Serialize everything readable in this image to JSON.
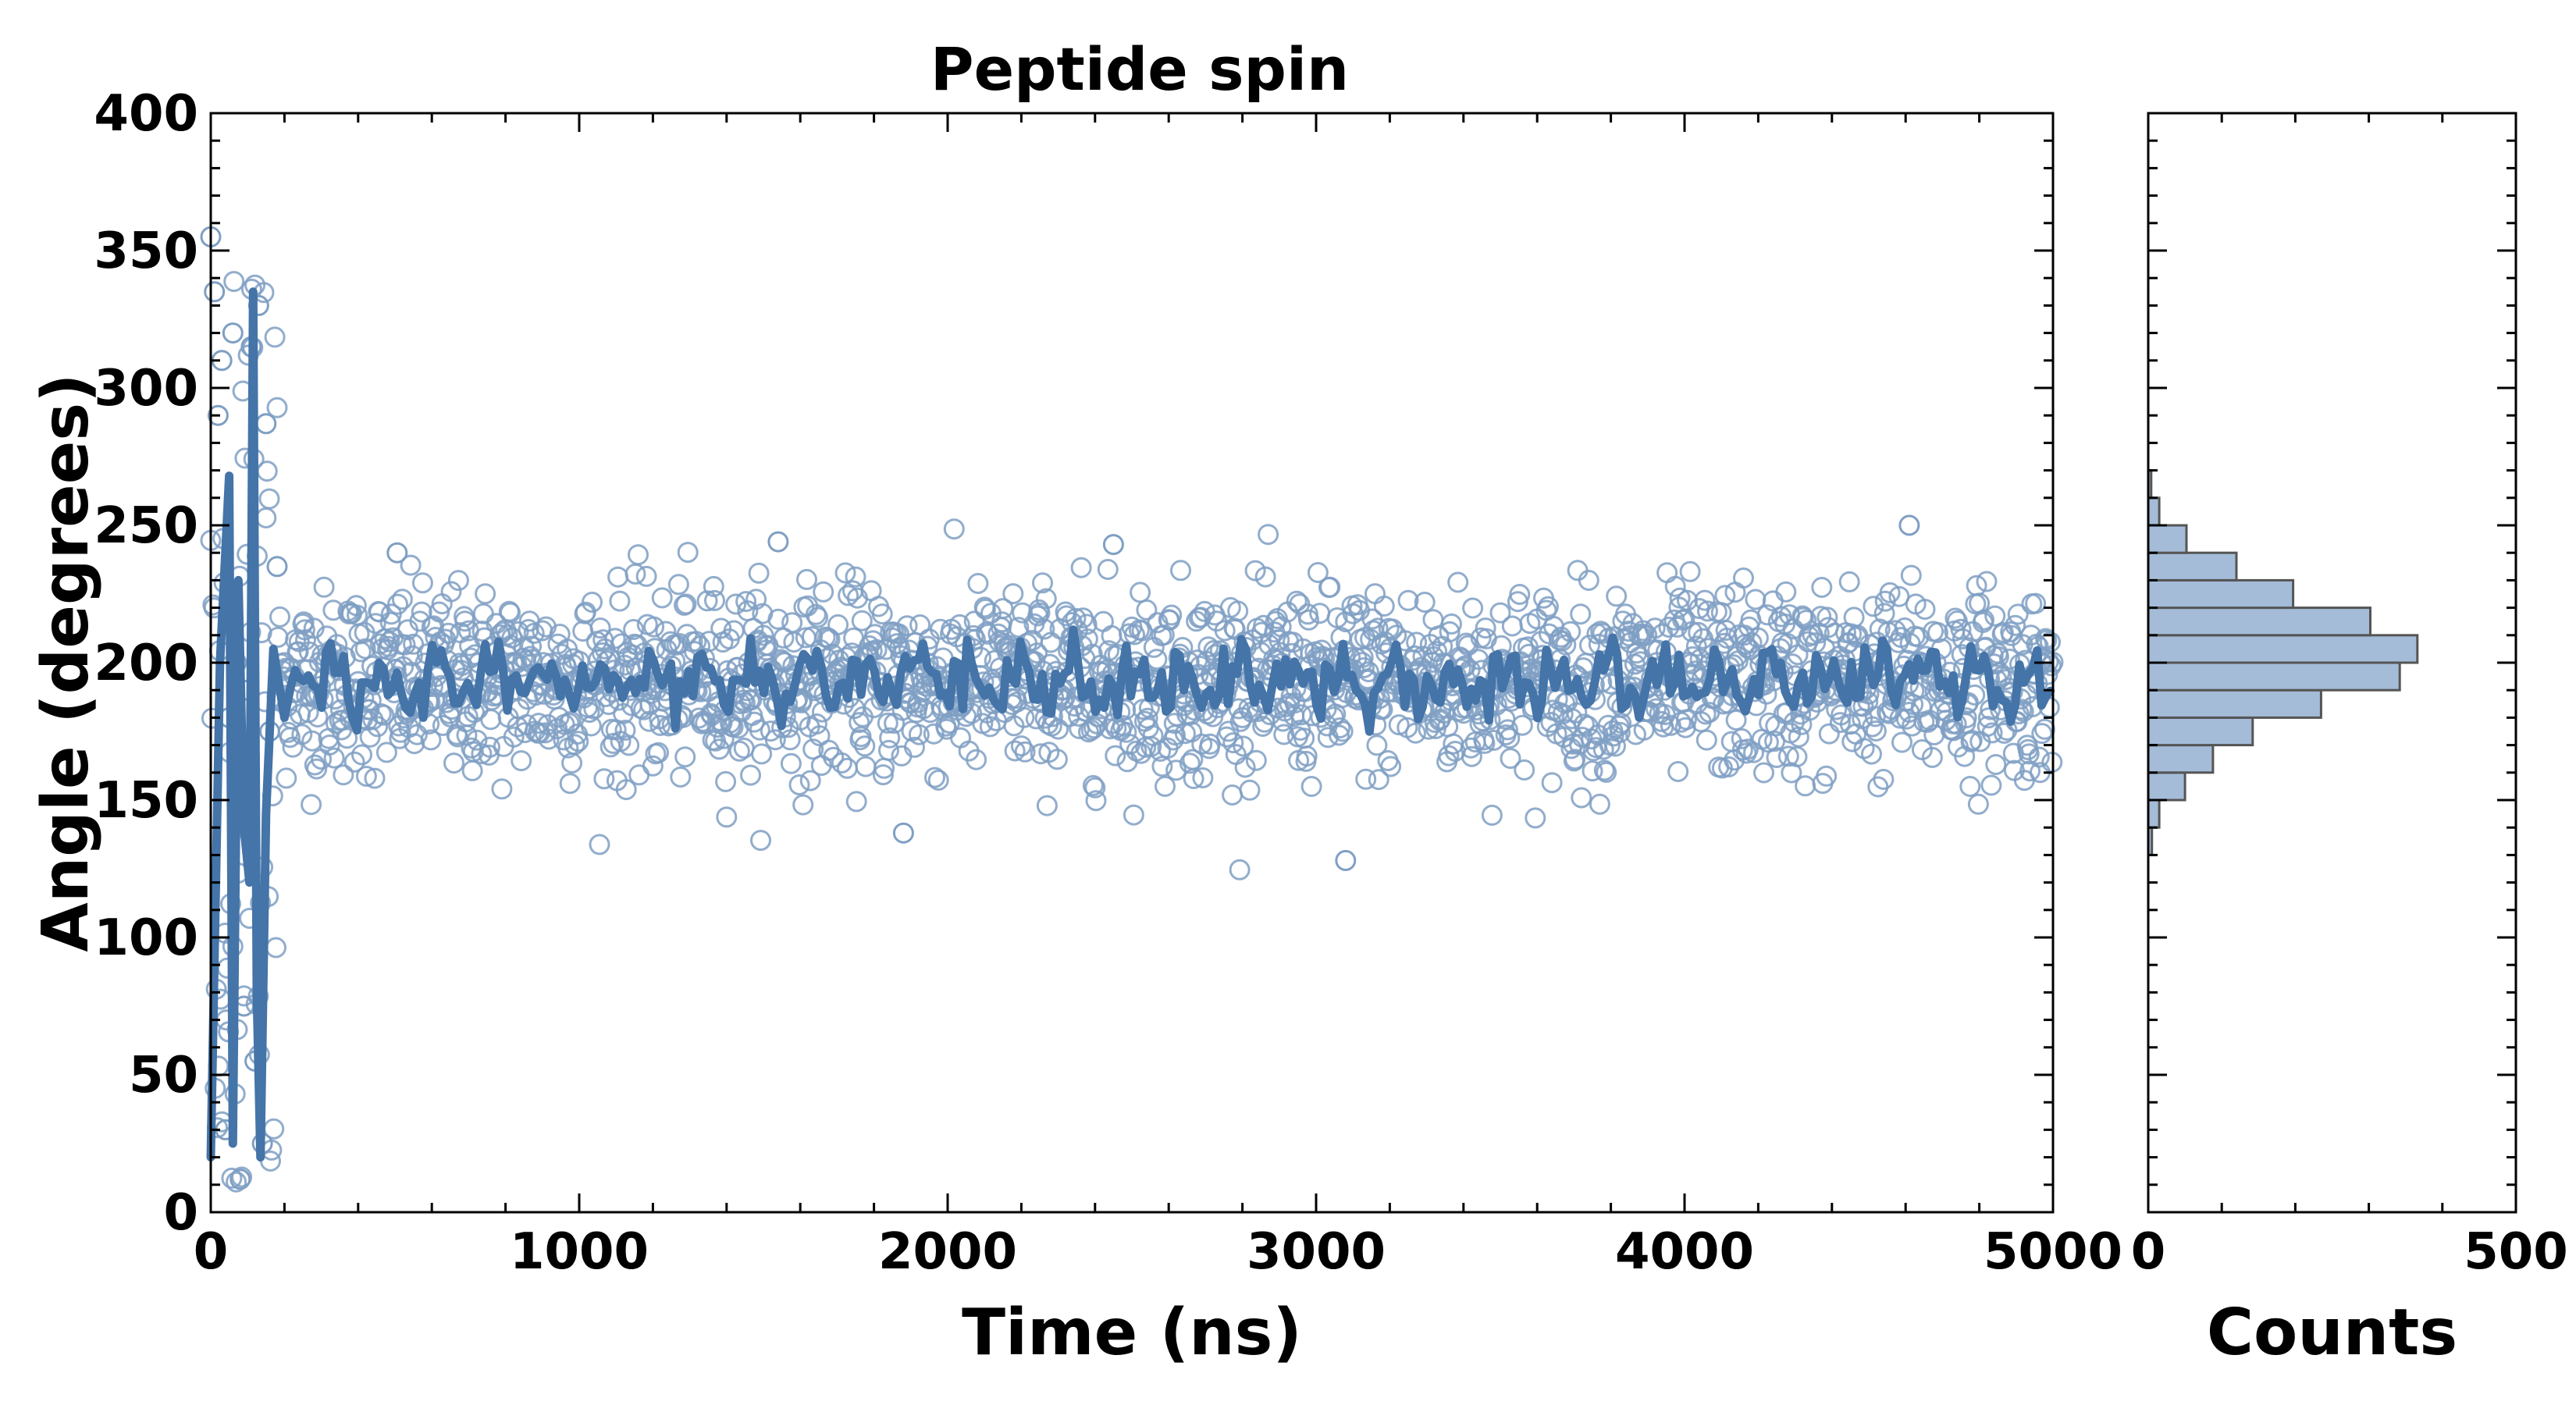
{
  "chart_data": [
    {
      "type": "scatter",
      "title": "Peptide spin",
      "xlabel": "Time (ns)",
      "ylabel": "Angle (degrees)",
      "xlim": [
        0,
        5000
      ],
      "ylim": [
        0,
        400
      ],
      "x_ticks": [
        "0",
        "1000",
        "2000",
        "3000",
        "4000",
        "5000"
      ],
      "y_ticks": [
        "0",
        "50",
        "100",
        "150",
        "200",
        "250",
        "300",
        "350",
        "400"
      ],
      "grid": false,
      "legend": "none",
      "colors": {
        "marker": "#7f9fc3",
        "line": "#4474a8"
      },
      "series": [
        {
          "kind": "scatter-open-circles",
          "description_points": [
            {
              "x": 0,
              "y": 355
            },
            {
              "x": 10,
              "y": 335
            },
            {
              "x": 20,
              "y": 290
            },
            {
              "x": 30,
              "y": 310
            },
            {
              "x": 40,
              "y": 30
            },
            {
              "x": 50,
              "y": 180
            },
            {
              "x": 60,
              "y": 320
            },
            {
              "x": 70,
              "y": 200
            },
            {
              "x": 80,
              "y": 12
            },
            {
              "x": 90,
              "y": 75
            },
            {
              "x": 100,
              "y": 190
            },
            {
              "x": 110,
              "y": 315
            },
            {
              "x": 120,
              "y": 55
            },
            {
              "x": 130,
              "y": 330
            },
            {
              "x": 140,
              "y": 25
            },
            {
              "x": 150,
              "y": 287
            },
            {
              "x": 160,
              "y": 175
            },
            {
              "x": 180,
              "y": 235
            },
            {
              "x": 506,
              "y": 240
            },
            {
              "x": 1540,
              "y": 244
            },
            {
              "x": 1880,
              "y": 138
            },
            {
              "x": 2450,
              "y": 243
            },
            {
              "x": 3080,
              "y": 128
            },
            {
              "x": 4610,
              "y": 250
            }
          ]
        },
        {
          "kind": "line",
          "key_points": [
            {
              "x": 0,
              "y": 20
            },
            {
              "x": 25,
              "y": 200
            },
            {
              "x": 50,
              "y": 268
            },
            {
              "x": 60,
              "y": 25
            },
            {
              "x": 75,
              "y": 230
            },
            {
              "x": 90,
              "y": 140
            },
            {
              "x": 105,
              "y": 120
            },
            {
              "x": 115,
              "y": 335
            },
            {
              "x": 125,
              "y": 80
            },
            {
              "x": 135,
              "y": 20
            },
            {
              "x": 150,
              "y": 145
            },
            {
              "x": 170,
              "y": 205
            },
            {
              "x": 200,
              "y": 180
            },
            {
              "x": 5000,
              "y": 195
            }
          ],
          "steady_state_mean": 193,
          "steady_state_range": [
            170,
            210
          ]
        }
      ]
    },
    {
      "type": "bar",
      "orientation": "horizontal",
      "xlabel": "Counts",
      "xlim": [
        0,
        500
      ],
      "x_ticks": [
        "0",
        "500"
      ],
      "ylim": [
        0,
        400
      ],
      "bin_width": 10,
      "colors": {
        "fill": "#a4bcd8",
        "edge": "#555555"
      },
      "bins": [
        {
          "y0": 130,
          "y1": 140,
          "count": 5
        },
        {
          "y0": 140,
          "y1": 150,
          "count": 15
        },
        {
          "y0": 150,
          "y1": 160,
          "count": 50
        },
        {
          "y0": 160,
          "y1": 170,
          "count": 88
        },
        {
          "y0": 170,
          "y1": 180,
          "count": 142
        },
        {
          "y0": 180,
          "y1": 190,
          "count": 235
        },
        {
          "y0": 190,
          "y1": 200,
          "count": 342
        },
        {
          "y0": 200,
          "y1": 210,
          "count": 366
        },
        {
          "y0": 210,
          "y1": 220,
          "count": 302
        },
        {
          "y0": 220,
          "y1": 230,
          "count": 197
        },
        {
          "y0": 230,
          "y1": 240,
          "count": 120
        },
        {
          "y0": 240,
          "y1": 250,
          "count": 52
        },
        {
          "y0": 250,
          "y1": 260,
          "count": 15
        },
        {
          "y0": 260,
          "y1": 270,
          "count": 4
        }
      ]
    }
  ]
}
